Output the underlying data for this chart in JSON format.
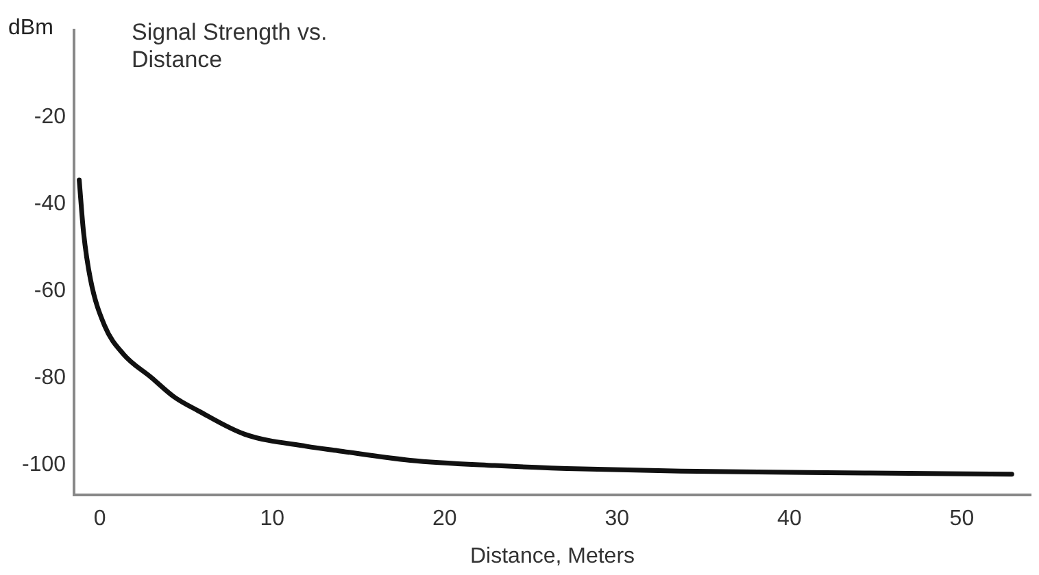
{
  "chart_data": {
    "type": "line",
    "title": "Signal Strength vs. Distance",
    "xlabel": "Distance, Meters",
    "ylabel": "dBm",
    "xlim": [
      -1.5,
      54
    ],
    "ylim": [
      -107,
      0
    ],
    "xticks": [
      0,
      10,
      20,
      30,
      40,
      50
    ],
    "yticks": [
      -20,
      -40,
      -60,
      -80,
      -100
    ],
    "grid": false,
    "legend": false,
    "marker": "none",
    "line_style": "solid",
    "series": [
      {
        "color": "#111111",
        "x": [
          -1.2,
          -0.95,
          -0.55,
          0.27,
          1.35,
          3.0,
          4.3,
          5.7,
          8.4,
          12,
          13.8,
          18,
          22.9,
          28,
          33.7,
          41,
          47,
          52.9
        ],
        "values": [
          -34.5,
          -46.5,
          -57.3,
          -68,
          -74.5,
          -80,
          -84.4,
          -87.6,
          -93,
          -95.8,
          -96.8,
          -99,
          -100.2,
          -101,
          -101.5,
          -101.8,
          -102,
          -102.2
        ]
      }
    ]
  }
}
